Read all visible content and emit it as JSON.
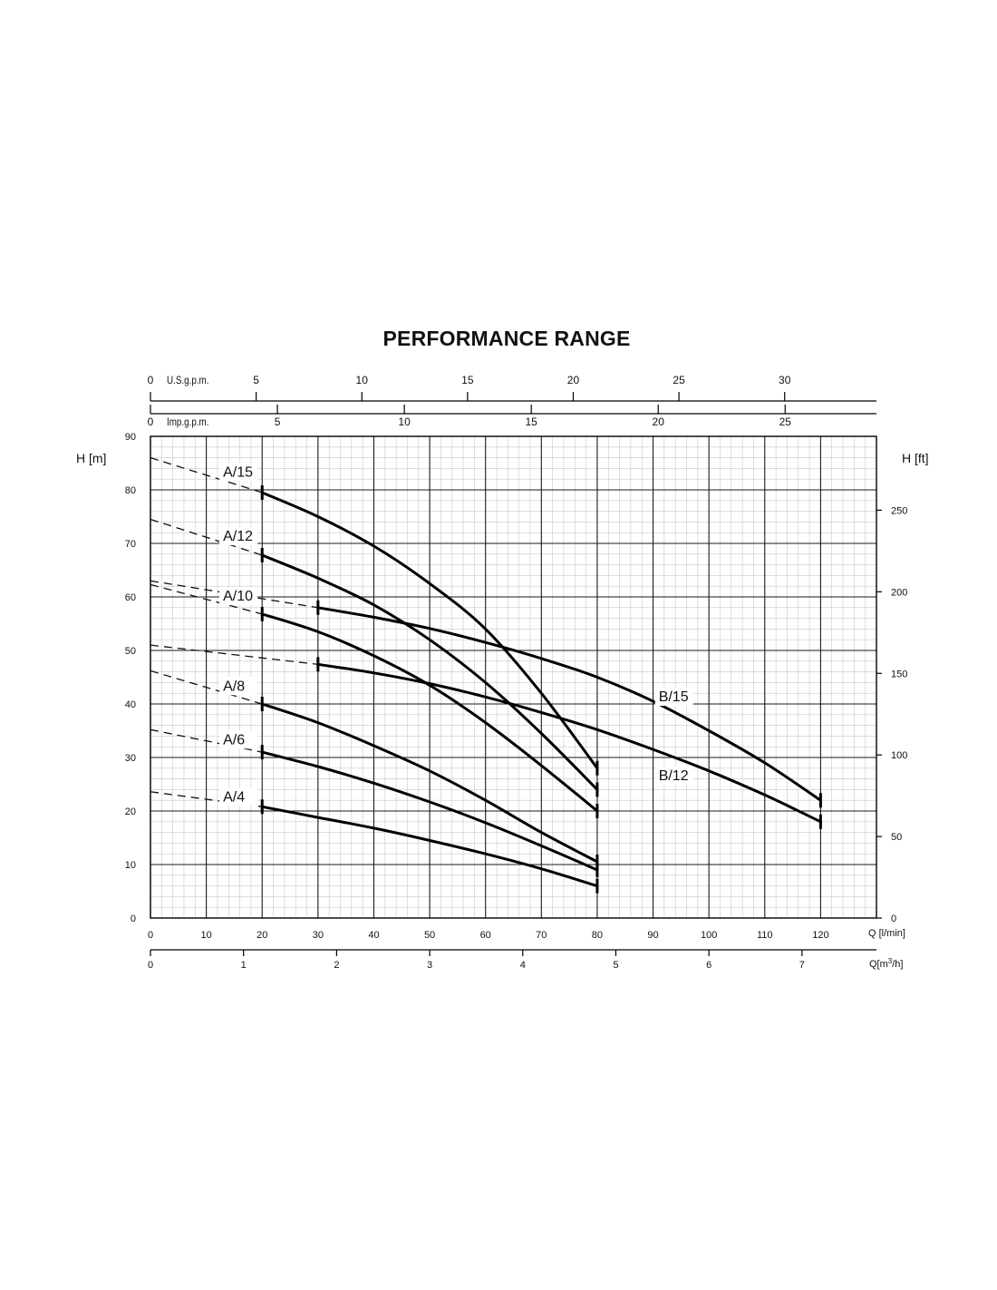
{
  "chart_data": {
    "type": "line",
    "title": "PERFORMANCE RANGE",
    "xlabel": "Q [l/min]",
    "x2label": "Q[m3/h]",
    "ylabel": "H [m]",
    "y2label": "H [ft]",
    "xlim": [
      0,
      130
    ],
    "ylim": [
      0,
      90
    ],
    "grid": true,
    "x_ticks": [
      0,
      10,
      20,
      30,
      40,
      50,
      60,
      70,
      80,
      90,
      100,
      110,
      120
    ],
    "y_ticks": [
      0,
      10,
      20,
      30,
      40,
      50,
      60,
      70,
      80,
      90
    ],
    "y_ft_ticks": [
      0,
      50,
      100,
      150,
      200,
      250
    ],
    "m3h_ticks": [
      0,
      1,
      2,
      3,
      4,
      5,
      6,
      7
    ],
    "usgpm_label": "U.S.g.p.m.",
    "usgpm_ticks": [
      0,
      5,
      10,
      15,
      20,
      25,
      30
    ],
    "impgpm_label": "Imp.g.p.m.",
    "impgpm_ticks": [
      0,
      5,
      10,
      15,
      20,
      25
    ],
    "series": [
      {
        "name": "A/15",
        "label_at": [
          13,
          82.5
        ],
        "dashed": [
          [
            0,
            86
          ],
          [
            20,
            79.5
          ]
        ],
        "points": [
          [
            20,
            79.5
          ],
          [
            30,
            75
          ],
          [
            40,
            69.5
          ],
          [
            50,
            62.5
          ],
          [
            60,
            54
          ],
          [
            70,
            42
          ],
          [
            80,
            28
          ]
        ]
      },
      {
        "name": "A/12",
        "label_at": [
          13,
          70.5
        ],
        "dashed": [
          [
            0,
            74.5
          ],
          [
            20,
            67.8
          ]
        ],
        "points": [
          [
            20,
            67.8
          ],
          [
            30,
            63.5
          ],
          [
            40,
            58.5
          ],
          [
            50,
            52
          ],
          [
            60,
            44
          ],
          [
            70,
            34.5
          ],
          [
            80,
            24
          ]
        ]
      },
      {
        "name": "A/10",
        "label_at": [
          13,
          59.3
        ],
        "dashed": [
          [
            0,
            62.3
          ],
          [
            20,
            56.8
          ]
        ],
        "points": [
          [
            20,
            56.8
          ],
          [
            30,
            53.5
          ],
          [
            40,
            49
          ],
          [
            50,
            43.5
          ],
          [
            60,
            36.5
          ],
          [
            70,
            28.5
          ],
          [
            80,
            20
          ]
        ]
      },
      {
        "name": "A/8",
        "label_at": [
          13,
          42.5
        ],
        "dashed": [
          [
            0,
            46.2
          ],
          [
            20,
            40
          ]
        ],
        "points": [
          [
            20,
            40
          ],
          [
            30,
            36.5
          ],
          [
            40,
            32.2
          ],
          [
            50,
            27.5
          ],
          [
            60,
            22
          ],
          [
            70,
            16
          ],
          [
            80,
            10.5
          ]
        ]
      },
      {
        "name": "A/6",
        "label_at": [
          13,
          32.5
        ],
        "dashed": [
          [
            0,
            35.2
          ],
          [
            20,
            31
          ]
        ],
        "points": [
          [
            20,
            31
          ],
          [
            30,
            28.3
          ],
          [
            40,
            25.2
          ],
          [
            50,
            21.7
          ],
          [
            60,
            17.8
          ],
          [
            70,
            13.5
          ],
          [
            80,
            9
          ]
        ]
      },
      {
        "name": "A/4",
        "label_at": [
          13,
          21.8
        ],
        "dashed": [
          [
            0,
            23.6
          ],
          [
            20,
            20.8
          ]
        ],
        "points": [
          [
            20,
            20.8
          ],
          [
            30,
            18.8
          ],
          [
            40,
            16.8
          ],
          [
            50,
            14.5
          ],
          [
            60,
            12
          ],
          [
            70,
            9.2
          ],
          [
            80,
            6
          ]
        ]
      },
      {
        "name": "B/15",
        "label_at": [
          91,
          40.5
        ],
        "dashed": [
          [
            0,
            63
          ],
          [
            30,
            58
          ]
        ],
        "points": [
          [
            30,
            58
          ],
          [
            40,
            56.2
          ],
          [
            50,
            54.1
          ],
          [
            60,
            51.5
          ],
          [
            70,
            48.5
          ],
          [
            80,
            45
          ],
          [
            90,
            40.5
          ],
          [
            100,
            35
          ],
          [
            110,
            29
          ],
          [
            120,
            22
          ]
        ]
      },
      {
        "name": "B/12",
        "label_at": [
          91,
          25.8
        ],
        "dashed": [
          [
            0,
            51
          ],
          [
            30,
            47.4
          ]
        ],
        "points": [
          [
            30,
            47.4
          ],
          [
            40,
            45.8
          ],
          [
            50,
            43.8
          ],
          [
            60,
            41.3
          ],
          [
            70,
            38.4
          ],
          [
            80,
            35.2
          ],
          [
            90,
            31.5
          ],
          [
            100,
            27.5
          ],
          [
            110,
            23
          ],
          [
            120,
            18
          ]
        ]
      }
    ]
  }
}
